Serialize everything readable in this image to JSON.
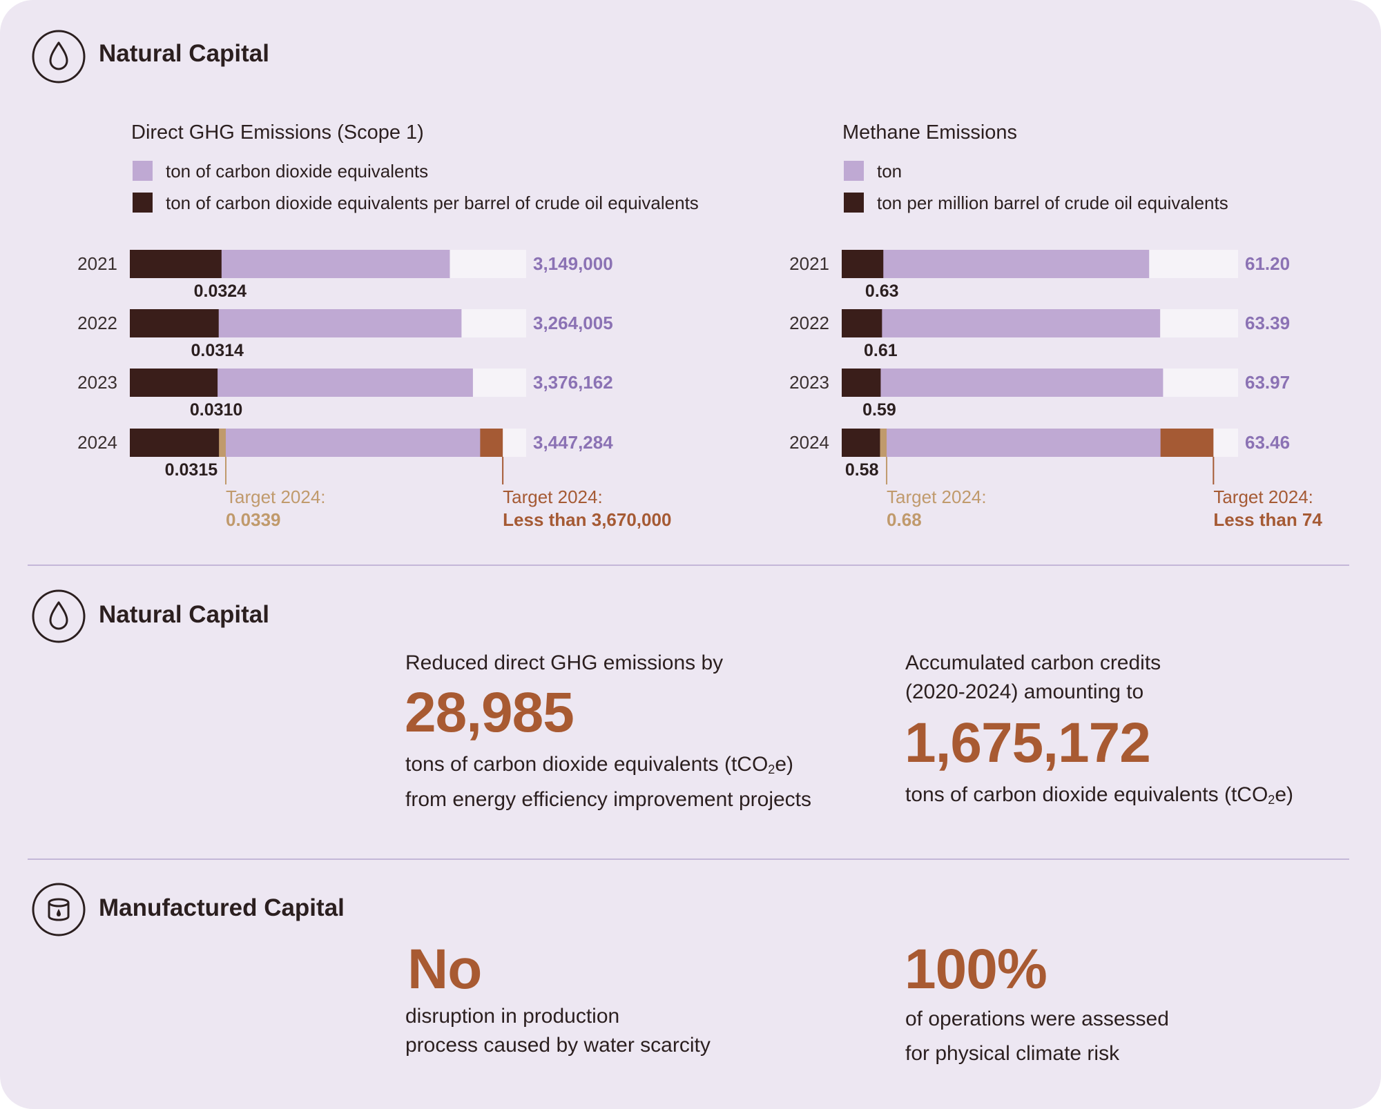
{
  "colors": {
    "emissions": "#bfa9d3",
    "intensity": "#3a1e1a",
    "track": "#f6f3f8",
    "target_intensity": "#c09a6c",
    "target_total": "#a55a34",
    "value_text": "#8b72b4"
  },
  "sections": {
    "s1": {
      "title": "Natural Capital",
      "icon": "water-drop-icon"
    },
    "s2": {
      "title": "Natural Capital",
      "icon": "water-drop-icon"
    },
    "s3": {
      "title": "Manufactured Capital",
      "icon": "oil-tank-icon"
    }
  },
  "chart_data": [
    {
      "type": "bar",
      "title": "Direct GHG Emissions (Scope 1)",
      "legend": [
        "ton of carbon dioxide equivalents",
        "ton of carbon dioxide equivalents per barrel of crude oil equivalents"
      ],
      "categories": [
        "2021",
        "2022",
        "2023",
        "2024"
      ],
      "series": [
        {
          "name": "ton of carbon dioxide equivalents",
          "values": [
            3149000,
            3264005,
            3376162,
            3447284
          ],
          "labels": [
            "3,149,000",
            "3,264,005",
            "3,376,162",
            "3,447,284"
          ]
        },
        {
          "name": "ton of carbon dioxide equivalents per barrel of crude oil equivalents",
          "values": [
            0.0324,
            0.0314,
            0.031,
            0.0315
          ],
          "labels": [
            "0.0324",
            "0.0314",
            "0.0310",
            "0.0315"
          ]
        }
      ],
      "total_scale_max": 3900000,
      "intensity_scale_max": 0.14,
      "targets": {
        "intensity": {
          "value": 0.0339,
          "label": "Target 2024:",
          "value_label": "0.0339"
        },
        "total": {
          "value": 3670000,
          "label": "Target 2024:",
          "value_label": "Less than 3,670,000"
        }
      }
    },
    {
      "type": "bar",
      "title": "Methane Emissions",
      "legend": [
        "ton",
        "ton per million barrel of crude oil equivalents"
      ],
      "categories": [
        "2021",
        "2022",
        "2023",
        "2024"
      ],
      "series": [
        {
          "name": "ton",
          "values": [
            61.2,
            63.39,
            63.97,
            63.46
          ],
          "labels": [
            "61.20",
            "63.39",
            "63.97",
            "63.46"
          ]
        },
        {
          "name": "ton per million barrel of crude oil equivalents",
          "values": [
            0.63,
            0.61,
            0.59,
            0.58
          ],
          "labels": [
            "0.63",
            "0.61",
            "0.59",
            "0.58"
          ]
        }
      ],
      "total_scale_max": 78.9,
      "intensity_scale_max": 6.0,
      "targets": {
        "intensity": {
          "value": 0.68,
          "label": "Target 2024:",
          "value_label": "0.68"
        },
        "total": {
          "value": 74,
          "label": "Target 2024:",
          "value_label": "Less than 74"
        }
      }
    }
  ],
  "stats": {
    "reduced": {
      "lead": "Reduced direct GHG emissions by",
      "value": "28,985",
      "desc_line1": "tons of carbon dioxide equivalents (tCO",
      "desc_sub": "2",
      "desc_line1_end": "e)",
      "desc_line2": "from energy efficiency improvement projects"
    },
    "credits": {
      "lead_line1": "Accumulated carbon credits",
      "lead_line2": "(2020-2024) amounting to",
      "value": "1,675,172",
      "desc": "tons of carbon dioxide equivalents  (tCO",
      "desc_sub": "2",
      "desc_end": "e)"
    },
    "disruption": {
      "value": "No",
      "desc_line1": "disruption in production",
      "desc_line2": "process caused by water scarcity"
    },
    "assessed": {
      "value": "100%",
      "desc_line1": "of operations were assessed",
      "desc_line2": "for physical climate risk"
    }
  }
}
